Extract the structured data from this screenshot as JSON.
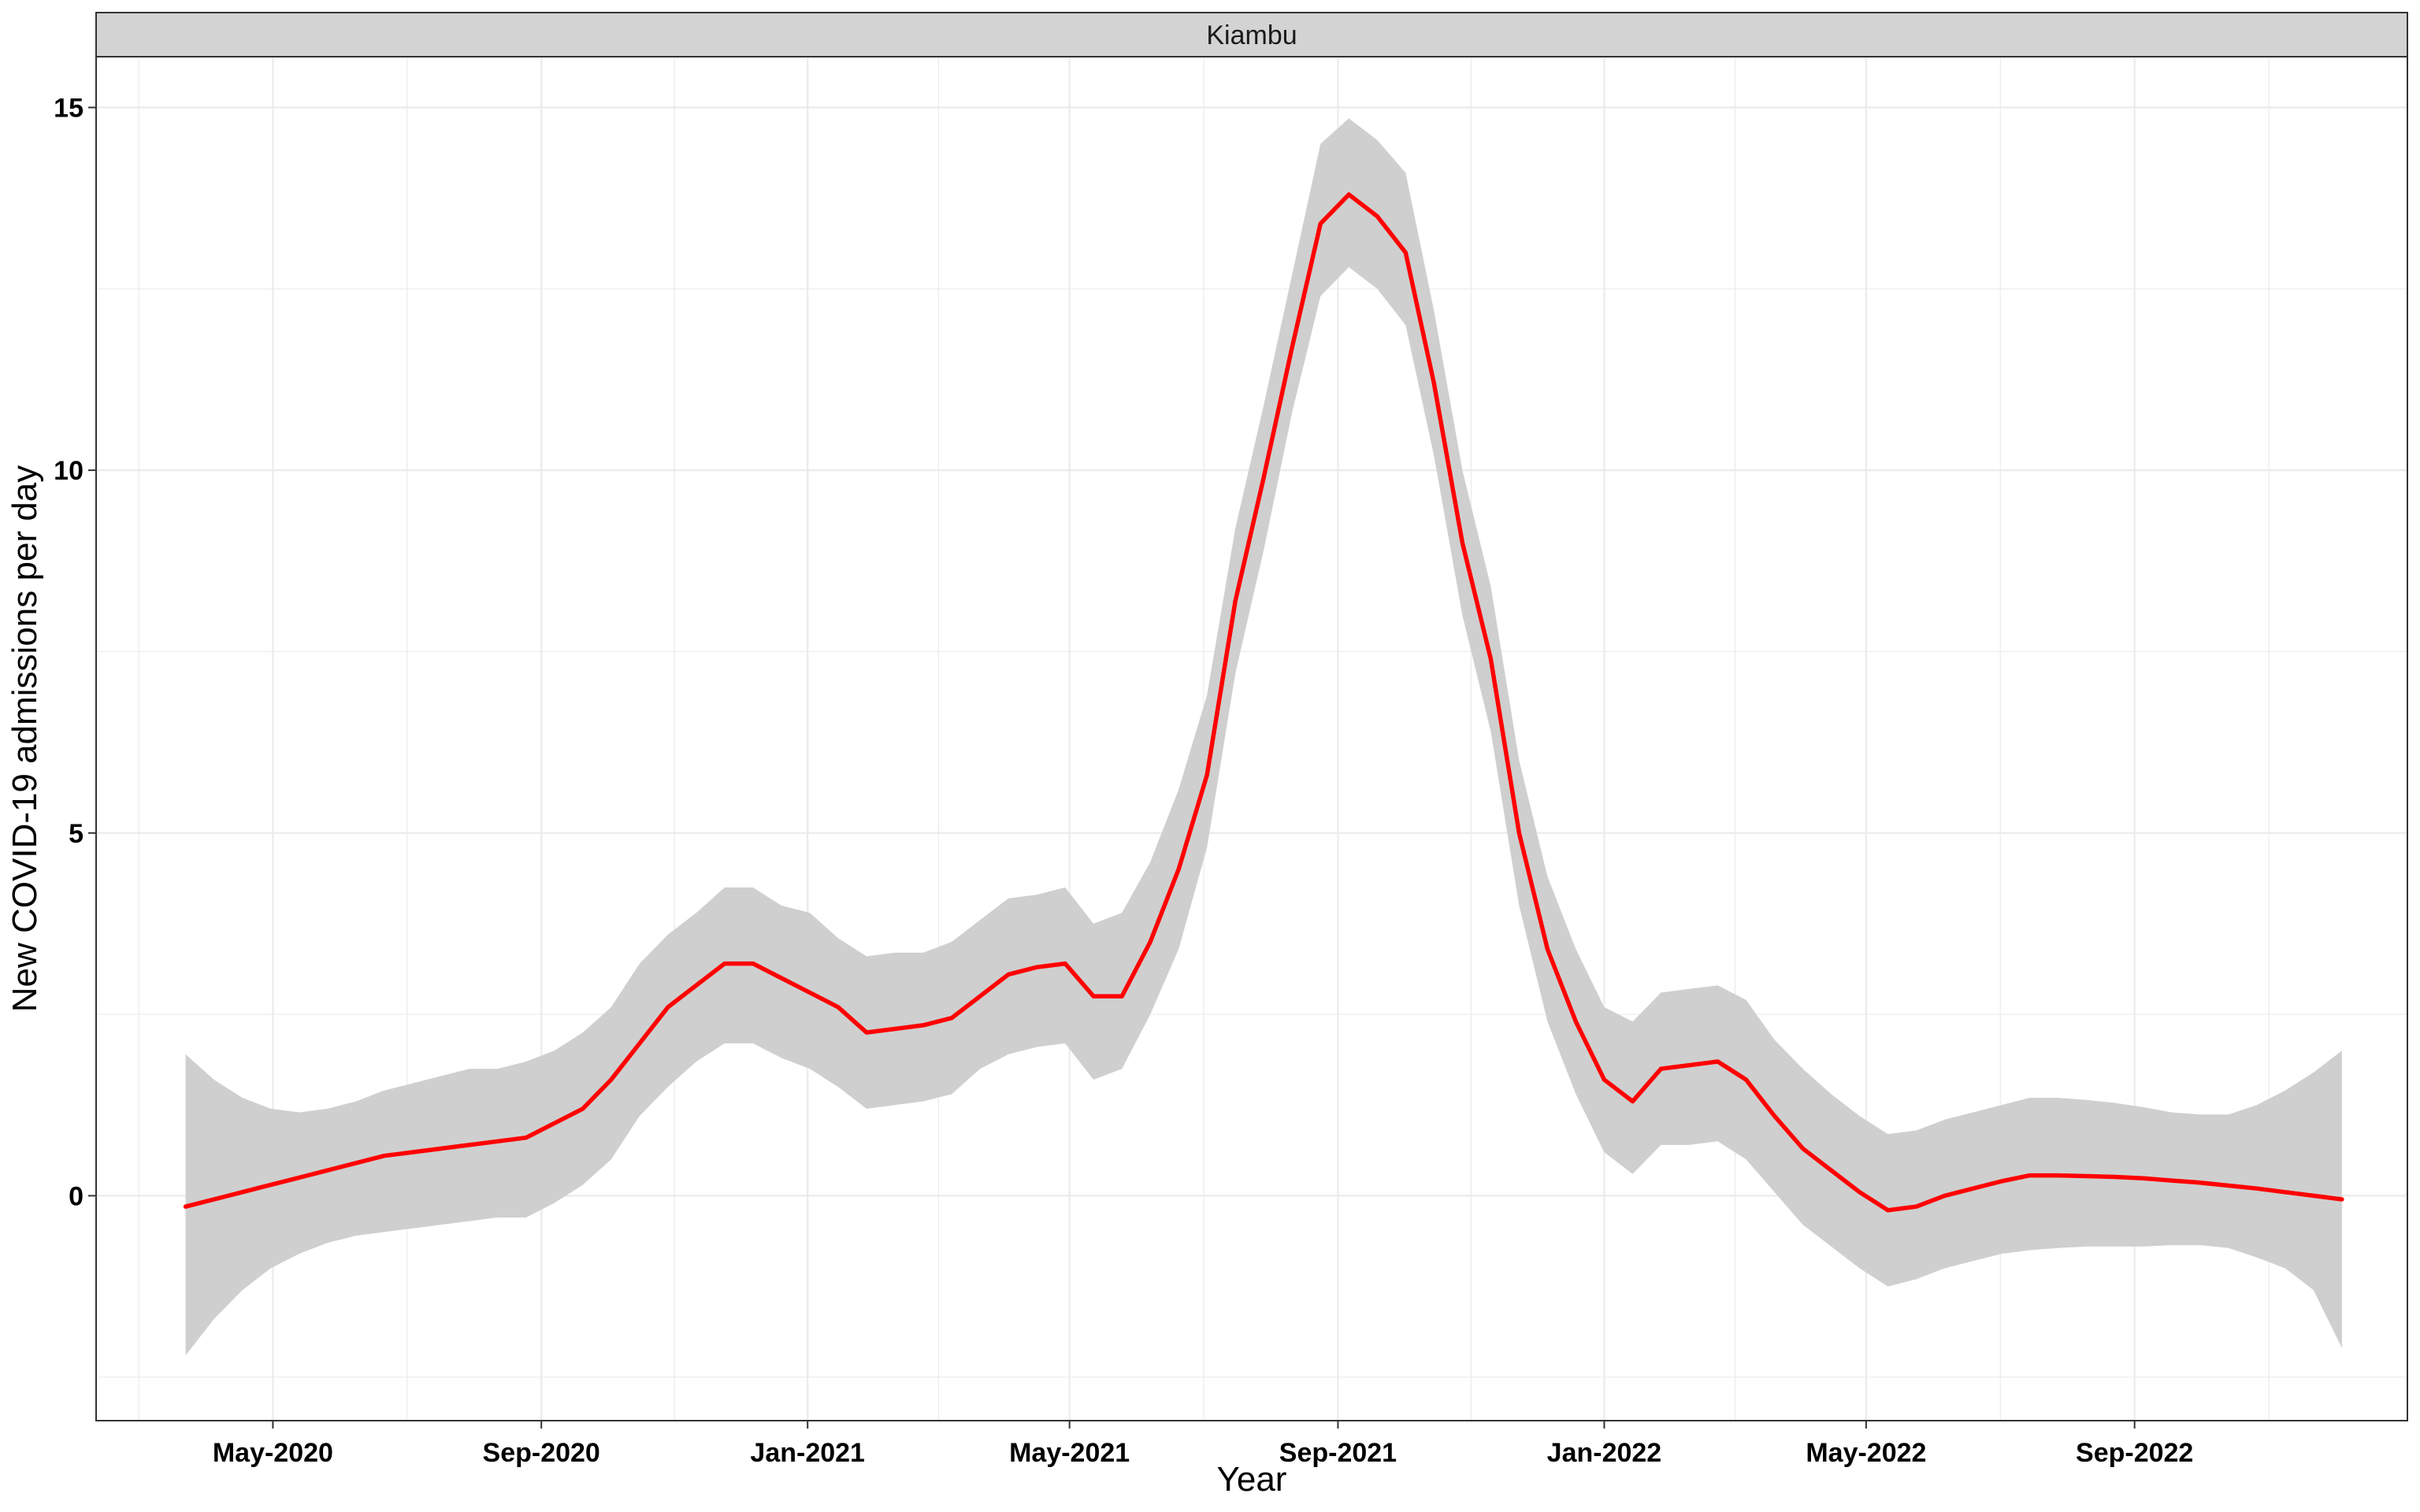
{
  "chart_data": {
    "type": "line",
    "title": "",
    "facet_label": "Kiambu",
    "xlabel": "Year",
    "ylabel": "New COVID-19 admissions per day",
    "xlim": [
      "2020-02-10",
      "2023-01-04"
    ],
    "ylim": [
      -3.1,
      15.7
    ],
    "yticks": [
      0,
      5,
      10,
      15
    ],
    "ytick_labels": [
      "0",
      "5",
      "10",
      "15"
    ],
    "xticks": [
      "2020-05-01",
      "2020-09-01",
      "2021-01-01",
      "2021-05-01",
      "2021-09-01",
      "2022-01-01",
      "2022-05-01",
      "2022-09-01"
    ],
    "xtick_labels": [
      "May-2020",
      "Sep-2020",
      "Jan-2021",
      "May-2021",
      "Sep-2021",
      "Jan-2022",
      "May-2022",
      "Sep-2022"
    ],
    "grid": true,
    "legend": "none",
    "colors": {
      "line": "#ff0000",
      "ribbon": "#cfcfcf",
      "strip_fill": "#d3d3d3",
      "grid": "#ebebeb",
      "panel_border": "#333333"
    },
    "series": [
      {
        "x": [
          "2020-03-22",
          "2020-04-04",
          "2020-04-17",
          "2020-04-30",
          "2020-05-13",
          "2020-05-26",
          "2020-06-08",
          "2020-06-21",
          "2020-07-04",
          "2020-07-17",
          "2020-07-30",
          "2020-08-12",
          "2020-08-25",
          "2020-09-07",
          "2020-09-20",
          "2020-10-03",
          "2020-10-16",
          "2020-10-29",
          "2020-11-11",
          "2020-11-24",
          "2020-12-07",
          "2020-12-20",
          "2021-01-02",
          "2021-01-15",
          "2021-01-28",
          "2021-02-10",
          "2021-02-23",
          "2021-03-08",
          "2021-03-21",
          "2021-04-03",
          "2021-04-16",
          "2021-04-29",
          "2021-05-12",
          "2021-05-25",
          "2021-06-07",
          "2021-06-20",
          "2021-07-03",
          "2021-07-16",
          "2021-07-29",
          "2021-08-11",
          "2021-08-24",
          "2021-09-06",
          "2021-09-19",
          "2021-10-02",
          "2021-10-15",
          "2021-10-28",
          "2021-11-10",
          "2021-11-23",
          "2021-12-06",
          "2021-12-19",
          "2022-01-01",
          "2022-01-14",
          "2022-01-27",
          "2022-02-09",
          "2022-02-22",
          "2022-03-07",
          "2022-03-20",
          "2022-04-02",
          "2022-04-15",
          "2022-04-28",
          "2022-05-11",
          "2022-05-24",
          "2022-06-06",
          "2022-06-19",
          "2022-07-02",
          "2022-07-15",
          "2022-07-28",
          "2022-08-10",
          "2022-08-23",
          "2022-09-05",
          "2022-09-18",
          "2022-10-01",
          "2022-10-14",
          "2022-10-27",
          "2022-11-09",
          "2022-11-22",
          "2022-12-05"
        ],
        "y": [
          -0.15,
          -0.05,
          0.05,
          0.15,
          0.25,
          0.35,
          0.45,
          0.55,
          0.6,
          0.65,
          0.7,
          0.75,
          0.8,
          1.0,
          1.2,
          1.6,
          2.1,
          2.6,
          2.9,
          3.2,
          3.2,
          3.0,
          2.8,
          2.6,
          2.25,
          2.3,
          2.35,
          2.45,
          2.75,
          3.05,
          3.15,
          3.2,
          2.75,
          2.75,
          3.5,
          4.5,
          5.8,
          8.2,
          9.9,
          11.7,
          13.4,
          13.8,
          13.5,
          13.0,
          11.2,
          9.0,
          7.4,
          5.0,
          3.4,
          2.4,
          1.6,
          1.3,
          1.75,
          1.8,
          1.85,
          1.6,
          1.1,
          0.65,
          0.35,
          0.05,
          -0.2,
          -0.15,
          0.0,
          0.1,
          0.2,
          0.28,
          0.28,
          0.27,
          0.26,
          0.24,
          0.21,
          0.18,
          0.14,
          0.1,
          0.05,
          0.0,
          -0.05
        ],
        "lower": [
          -2.2,
          -1.7,
          -1.3,
          -1.0,
          -0.8,
          -0.65,
          -0.55,
          -0.5,
          -0.45,
          -0.4,
          -0.35,
          -0.3,
          -0.3,
          -0.1,
          0.15,
          0.5,
          1.1,
          1.5,
          1.85,
          2.1,
          2.1,
          1.9,
          1.75,
          1.5,
          1.2,
          1.25,
          1.3,
          1.4,
          1.75,
          1.95,
          2.05,
          2.1,
          1.6,
          1.75,
          2.5,
          3.4,
          4.8,
          7.2,
          8.9,
          10.8,
          12.4,
          12.8,
          12.5,
          12.0,
          10.2,
          8.0,
          6.4,
          4.0,
          2.4,
          1.4,
          0.6,
          0.3,
          0.7,
          0.7,
          0.75,
          0.5,
          0.05,
          -0.4,
          -0.7,
          -1.0,
          -1.25,
          -1.15,
          -1.0,
          -0.9,
          -0.8,
          -0.75,
          -0.72,
          -0.7,
          -0.7,
          -0.7,
          -0.68,
          -0.68,
          -0.72,
          -0.85,
          -1.0,
          -1.3,
          -2.1
        ],
        "upper": [
          1.95,
          1.6,
          1.35,
          1.2,
          1.15,
          1.2,
          1.3,
          1.45,
          1.55,
          1.65,
          1.75,
          1.75,
          1.85,
          2.0,
          2.25,
          2.6,
          3.2,
          3.6,
          3.9,
          4.25,
          4.25,
          4.0,
          3.9,
          3.55,
          3.3,
          3.35,
          3.35,
          3.5,
          3.8,
          4.1,
          4.15,
          4.25,
          3.75,
          3.9,
          4.6,
          5.6,
          6.9,
          9.2,
          10.9,
          12.7,
          14.5,
          14.85,
          14.55,
          14.1,
          12.2,
          10.0,
          8.4,
          6.0,
          4.4,
          3.4,
          2.6,
          2.4,
          2.8,
          2.85,
          2.9,
          2.7,
          2.15,
          1.75,
          1.4,
          1.1,
          0.85,
          0.9,
          1.05,
          1.15,
          1.25,
          1.35,
          1.35,
          1.32,
          1.28,
          1.22,
          1.15,
          1.12,
          1.12,
          1.25,
          1.45,
          1.7,
          2.0
        ]
      }
    ]
  }
}
